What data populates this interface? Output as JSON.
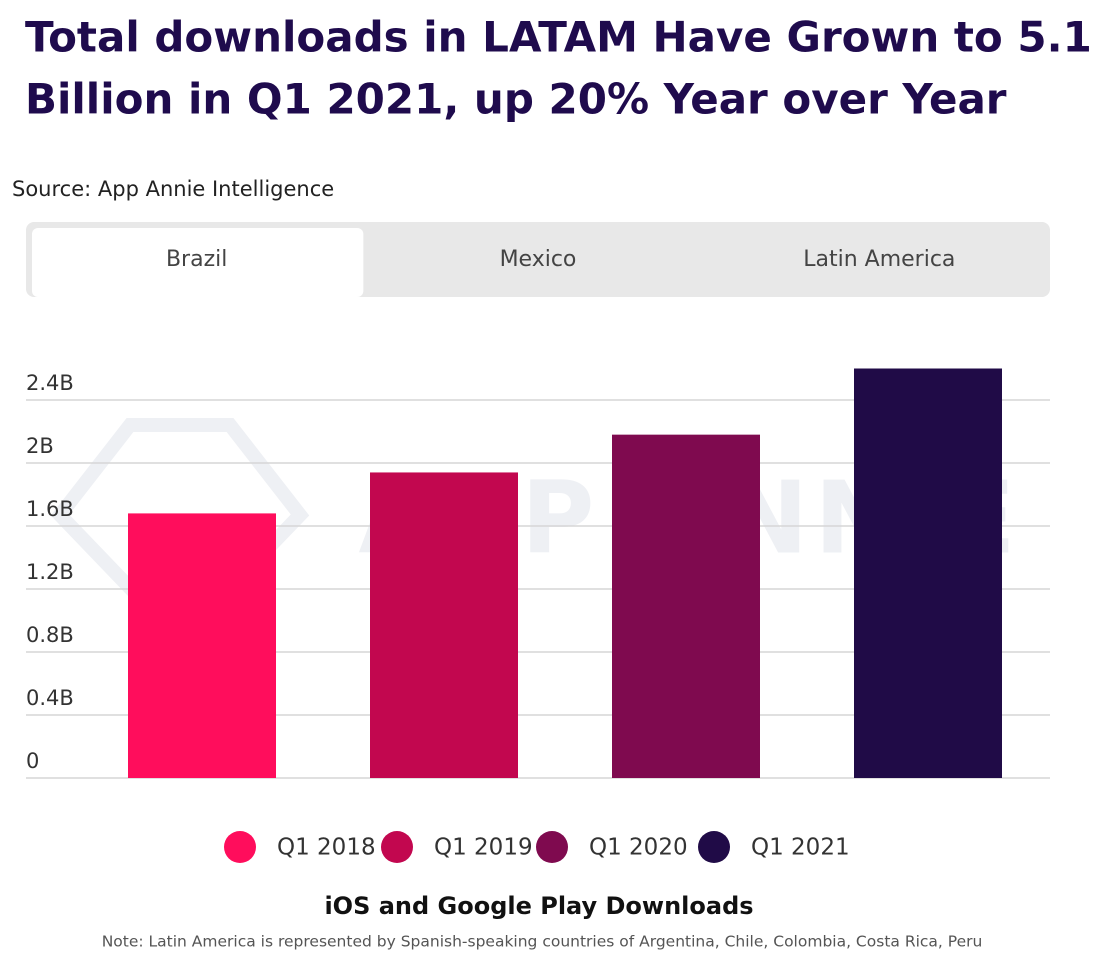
{
  "chart_data": {
    "type": "bar",
    "title_lines": [
      "Total downloads in LATAM Have Grown to 5.1",
      "Billion in Q1 2021, up 20% Year over Year"
    ],
    "source": "Source: App Annie Intelligence",
    "tabs": [
      "Brazil",
      "Mexico",
      "Latin America"
    ],
    "active_tab": 0,
    "watermark": "APP ANNIE",
    "categories": [
      "Q1 2018",
      "Q1 2019",
      "Q1 2020",
      "Q1 2021"
    ],
    "values": [
      1.68,
      1.94,
      2.18,
      2.6
    ],
    "colors": [
      "#ff0d5c",
      "#c2074f",
      "#7f0a4f",
      "#200b47"
    ],
    "ylim": [
      0,
      2.7
    ],
    "yticks": [
      0,
      {
        "value": 0.4,
        "label": "0.4B"
      },
      {
        "value": 0.8,
        "label": "0.8B"
      },
      {
        "value": 1.2,
        "label": "1.2B"
      },
      {
        "value": 1.6,
        "label": "1.6B"
      },
      {
        "value": 2,
        "label": "2B"
      },
      {
        "value": 2.4,
        "label": "2.4B"
      }
    ],
    "grid": true,
    "x_label": "iOS and Google Play Downloads",
    "note": "Note: Latin America is represented by Spanish-speaking countries of Argentina, Chile, Colombia, Costa Rica, Peru"
  }
}
